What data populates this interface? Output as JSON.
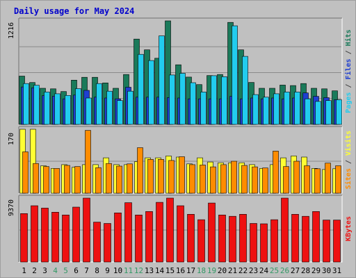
{
  "title": "Daily usage for May 2024",
  "colors": {
    "panel": "#c0c0c0",
    "title": "#0000cc",
    "hits": "#1a7a5a",
    "files": "#1f3fd0",
    "pages": "#22ccee",
    "visits": "#ffff33",
    "sites": "#ff8c00",
    "kbytes": "#ee1111",
    "weekend_label": "#339966",
    "grid": "#8a8a8a"
  },
  "chart_data": {
    "type": "bar",
    "days": [
      "1",
      "2",
      "3",
      "4",
      "5",
      "6",
      "7",
      "8",
      "9",
      "10",
      "11",
      "12",
      "13",
      "14",
      "15",
      "16",
      "17",
      "18",
      "19",
      "20",
      "21",
      "22",
      "23",
      "24",
      "25",
      "26",
      "27",
      "28",
      "29",
      "30",
      "31"
    ],
    "weekend_days": [
      "4",
      "5",
      "11",
      "12",
      "18",
      "19",
      "25",
      "26"
    ],
    "panels": [
      {
        "id": "top",
        "max_label": "1216",
        "ymax": 1216,
        "right_label_parts": [
          {
            "text": "Pages",
            "color": "#22ccee"
          },
          {
            "text": " / ",
            "color": "#444444"
          },
          {
            "text": "Files",
            "color": "#1f3fd0"
          },
          {
            "text": " / ",
            "color": "#444444"
          },
          {
            "text": "Hits",
            "color": "#1a7a5a"
          }
        ],
        "series": [
          {
            "name": "Hits",
            "color": "#1a7a5a",
            "values": [
              567,
              492,
              424,
              418,
              386,
              520,
              553,
              553,
              487,
              424,
              586,
              1002,
              876,
              777,
              1216,
              700,
              556,
              468,
              574,
              586,
              1198,
              876,
              493,
              424,
              424,
              462,
              456,
              480,
              424,
              418,
              394
            ]
          },
          {
            "name": "Files",
            "color": "#1f3fd0",
            "values": [
              440,
              430,
              338,
              332,
              300,
              344,
              400,
              320,
              310,
              300,
              437,
              320,
              320,
              320,
              315,
              310,
              300,
              300,
              300,
              300,
              330,
              300,
              310,
              300,
              310,
              300,
              310,
              370,
              330,
              314,
              290
            ]
          },
          {
            "name": "Pages",
            "color": "#22ccee",
            "values": [
              480,
              460,
              380,
              360,
              340,
              420,
              310,
              480,
              390,
              280,
              390,
              823,
              750,
              1040,
              580,
              600,
              490,
              380,
              572,
              560,
              1158,
              799,
              350,
              320,
              360,
              380,
              380,
              300,
              270,
              280,
              290
            ]
          }
        ]
      },
      {
        "id": "middle",
        "max_label": "170",
        "ymax": 170,
        "right_label_parts": [
          {
            "text": "Sites",
            "color": "#ff8c00"
          },
          {
            "text": " / ",
            "color": "#444444"
          },
          {
            "text": "Visits",
            "color": "#ffff33"
          }
        ],
        "series": [
          {
            "name": "Visits",
            "color": "#ffff33",
            "values": [
              170,
              170,
              73,
              66,
              76,
              69,
              76,
              76,
              94,
              76,
              76,
              84,
              94,
              94,
              99,
              96,
              78,
              94,
              83,
              81,
              81,
              81,
              76,
              66,
              76,
              94,
              99,
              96,
              66,
              63,
              65
            ]
          },
          {
            "name": "Sites",
            "color": "#ff8c00",
            "values": [
              110,
              79,
              71,
              66,
              74,
              71,
              167,
              68,
              79,
              72,
              78,
              121,
              90,
              90,
              87,
              97,
              76,
              75,
              70,
              76,
              85,
              74,
              70,
              67,
              112,
              71,
              85,
              73,
              65,
              80,
              73
            ]
          }
        ]
      },
      {
        "id": "bottom",
        "max_label": "9370",
        "ymax": 9370,
        "right_label_parts": [
          {
            "text": "KBytes",
            "color": "#ee1111"
          }
        ],
        "series": [
          {
            "name": "KBytes",
            "color": "#ee1111",
            "values": [
              7100,
              8250,
              7900,
              7300,
              6900,
              8050,
              9370,
              5850,
              5650,
              7200,
              8700,
              6900,
              7400,
              8750,
              9370,
              8250,
              7000,
              6200,
              8650,
              6900,
              6700,
              7000,
              5650,
              5600,
              6200,
              9370,
              7000,
              6700,
              7400,
              6150,
              6150
            ]
          }
        ]
      }
    ]
  }
}
